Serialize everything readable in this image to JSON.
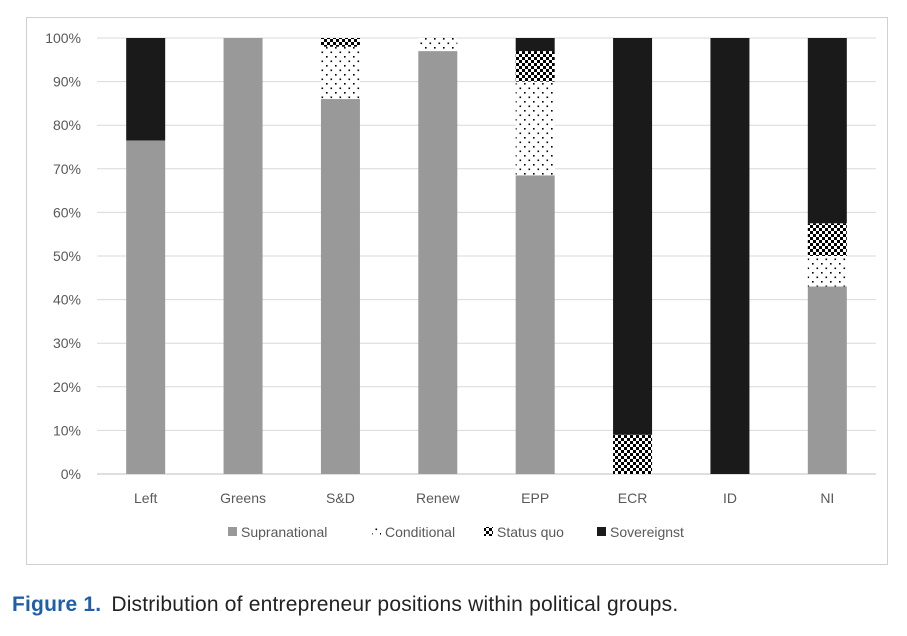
{
  "chart_data": {
    "type": "bar",
    "stacked": true,
    "percent": true,
    "categories": [
      "Left",
      "Greens",
      "S&D",
      "Renew",
      "EPP",
      "ECR",
      "ID",
      "NI"
    ],
    "series": [
      {
        "name": "Supranational",
        "values": [
          76.5,
          100,
          86,
          97,
          68.5,
          0,
          0,
          43
        ],
        "pattern": "solid",
        "color": "#999999"
      },
      {
        "name": "Conditional",
        "values": [
          0,
          0,
          12,
          3,
          21.5,
          0,
          0,
          7
        ],
        "pattern": "dots",
        "color": "#000000"
      },
      {
        "name": "Status quo",
        "values": [
          0,
          0,
          2,
          0,
          7,
          9,
          0,
          7.5
        ],
        "pattern": "checker",
        "color": "#000000"
      },
      {
        "name": "Sovereignst",
        "values": [
          23.5,
          0,
          0,
          0,
          3,
          91,
          100,
          42.5
        ],
        "pattern": "solid",
        "color": "#1a1a1a"
      }
    ],
    "ylim": [
      0,
      100
    ],
    "yticks": [
      "0%",
      "10%",
      "20%",
      "30%",
      "40%",
      "50%",
      "60%",
      "70%",
      "80%",
      "90%",
      "100%"
    ],
    "grid": true,
    "legend_position": "bottom"
  },
  "caption": {
    "label": "Figure 1.",
    "text": "Distribution of entrepreneur positions within political groups."
  }
}
